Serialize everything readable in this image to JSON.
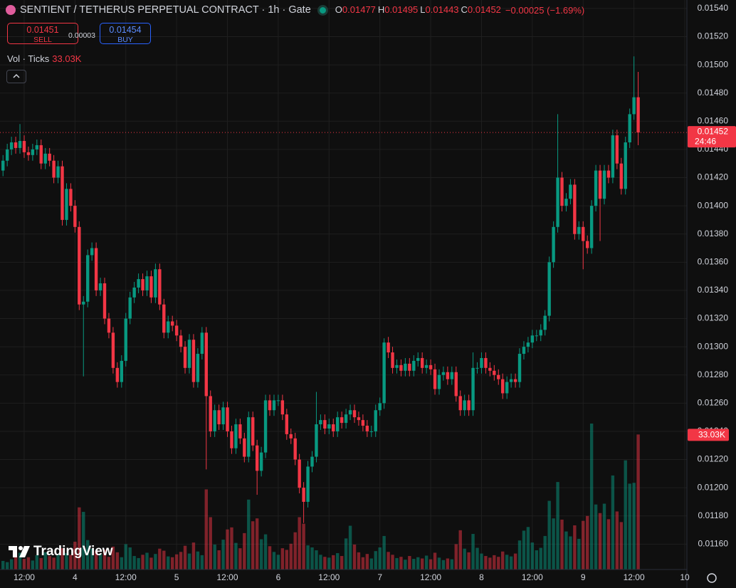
{
  "chart_data": {
    "type": "candlestick",
    "title": "SENTIENT / TETHERUS PERPETUAL CONTRACT · 1h · Gate",
    "legend": [
      {
        "key": "O",
        "value": "0.01477"
      },
      {
        "key": "H",
        "value": "0.01495"
      },
      {
        "key": "L",
        "value": "0.01443"
      },
      {
        "key": "C",
        "value": "0.01452"
      }
    ],
    "change": "−0.00025 (−1.69%)",
    "sell": {
      "price": "0.01451",
      "label": "SELL"
    },
    "spread": "0.00003",
    "buy": {
      "price": "0.01454",
      "label": "BUY"
    },
    "volume_legend": {
      "label": "Vol · Ticks",
      "value": "33.03K"
    },
    "price_label": "0.01452",
    "countdown": "24:46",
    "watermark": "TradingView",
    "up_color": "#089981",
    "down_color": "#f23645",
    "grid": true,
    "xlim": [
      6.29,
      168.5
    ],
    "xticks": [
      {
        "value": 12,
        "label": "12:00"
      },
      {
        "value": 24,
        "label": "4"
      },
      {
        "value": 36,
        "label": "12:00"
      },
      {
        "value": 48,
        "label": "5"
      },
      {
        "value": 60,
        "label": "12:00"
      },
      {
        "value": 72,
        "label": "6"
      },
      {
        "value": 84,
        "label": "12:00"
      },
      {
        "value": 96,
        "label": "7"
      },
      {
        "value": 108,
        "label": "12:00"
      },
      {
        "value": 120,
        "label": "8"
      },
      {
        "value": 132,
        "label": "12:00"
      },
      {
        "value": 144,
        "label": "9"
      },
      {
        "value": 156,
        "label": "12:00"
      },
      {
        "value": 168,
        "label": "10"
      }
    ],
    "ylim": [
      0.01142,
      0.01546
    ],
    "yticks": [
      {
        "value": 0.0154,
        "label": "0.01540"
      },
      {
        "value": 0.0152,
        "label": "0.01520"
      },
      {
        "value": 0.015,
        "label": "0.01500"
      },
      {
        "value": 0.0148,
        "label": "0.01480"
      },
      {
        "value": 0.0146,
        "label": "0.01460"
      },
      {
        "value": 0.0144,
        "label": "0.01440"
      },
      {
        "value": 0.0142,
        "label": "0.01420"
      },
      {
        "value": 0.014,
        "label": "0.01400"
      },
      {
        "value": 0.0138,
        "label": "0.01380"
      },
      {
        "value": 0.0136,
        "label": "0.01360"
      },
      {
        "value": 0.0134,
        "label": "0.01340"
      },
      {
        "value": 0.0132,
        "label": "0.01320"
      },
      {
        "value": 0.013,
        "label": "0.01300"
      },
      {
        "value": 0.0128,
        "label": "0.01280"
      },
      {
        "value": 0.0126,
        "label": "0.01260"
      },
      {
        "value": 0.0124,
        "label": "0.01240"
      },
      {
        "value": 0.0122,
        "label": "0.01220"
      },
      {
        "value": 0.012,
        "label": "0.01200"
      },
      {
        "value": 0.0118,
        "label": "0.01180"
      },
      {
        "value": 0.0116,
        "label": "0.01160"
      }
    ],
    "x": [
      7,
      8,
      9,
      10,
      11,
      12,
      13,
      14,
      15,
      16,
      17,
      18,
      19,
      20,
      21,
      22,
      23,
      24,
      25,
      26,
      27,
      28,
      29,
      30,
      31,
      32,
      33,
      34,
      35,
      36,
      37,
      38,
      39,
      40,
      41,
      42,
      43,
      44,
      45,
      46,
      47,
      48,
      49,
      50,
      51,
      52,
      53,
      54,
      55,
      56,
      57,
      58,
      59,
      60,
      61,
      62,
      63,
      64,
      65,
      66,
      67,
      68,
      69,
      70,
      71,
      72,
      73,
      74,
      75,
      76,
      77,
      78,
      79,
      80,
      81,
      82,
      83,
      84,
      85,
      86,
      87,
      88,
      89,
      90,
      91,
      92,
      93,
      94,
      95,
      96,
      97,
      98,
      99,
      100,
      101,
      102,
      103,
      104,
      105,
      106,
      107,
      108,
      109,
      110,
      111,
      112,
      113,
      114,
      115,
      116,
      117,
      118,
      119,
      120,
      121,
      122,
      123,
      124,
      125,
      126,
      127,
      128,
      129,
      130,
      131,
      132,
      133,
      134,
      135,
      136,
      137,
      138,
      139,
      140,
      141,
      142,
      143,
      144,
      145,
      146,
      147,
      148,
      149,
      150,
      151,
      152,
      153,
      154,
      155,
      156,
      157
    ],
    "open": [
      0.01425,
      0.01432,
      0.0144,
      0.01445,
      0.01441,
      0.01446,
      0.01438,
      0.01436,
      0.0144,
      0.01443,
      0.0143,
      0.01437,
      0.01432,
      0.0142,
      0.01428,
      0.0139,
      0.01412,
      0.014,
      0.01385,
      0.0133,
      0.01332,
      0.01365,
      0.0137,
      0.0134,
      0.01345,
      0.0132,
      0.0131,
      0.01285,
      0.01275,
      0.0129,
      0.0132,
      0.01335,
      0.01342,
      0.01348,
      0.0134,
      0.0135,
      0.01335,
      0.01355,
      0.0133,
      0.0131,
      0.01318,
      0.01315,
      0.01308,
      0.013,
      0.01285,
      0.01305,
      0.01275,
      0.01295,
      0.0131,
      0.01265,
      0.0124,
      0.01255,
      0.01245,
      0.01257,
      0.0124,
      0.01228,
      0.01245,
      0.01235,
      0.01222,
      0.0125,
      0.0123,
      0.01212,
      0.01225,
      0.01262,
      0.01255,
      0.01262,
      0.01262,
      0.01252,
      0.01238,
      0.01235,
      0.0122,
      0.012,
      0.0119,
      0.01215,
      0.01222,
      0.01245,
      0.01248,
      0.01242,
      0.01245,
      0.0124,
      0.0125,
      0.01246,
      0.01252,
      0.01255,
      0.0125,
      0.01248,
      0.01244,
      0.0124,
      0.0124,
      0.01255,
      0.0126,
      0.01303,
      0.01296,
      0.01285,
      0.01287,
      0.01283,
      0.01288,
      0.01283,
      0.0129,
      0.01292,
      0.01285,
      0.01287,
      0.01284,
      0.0127,
      0.0128,
      0.01282,
      0.01277,
      0.01282,
      0.01265,
      0.01255,
      0.01262,
      0.01255,
      0.01285,
      0.01285,
      0.01292,
      0.01285,
      0.01283,
      0.0128,
      0.01277,
      0.01267,
      0.01275,
      0.01277,
      0.01275,
      0.01295,
      0.013,
      0.01303,
      0.01308,
      0.01308,
      0.01312,
      0.01322,
      0.0136,
      0.01385,
      0.0142,
      0.014,
      0.01405,
      0.01415,
      0.0138,
      0.01385,
      0.01375,
      0.0137,
      0.014,
      0.01425,
      0.01405,
      0.01425,
      0.0142,
      0.0145,
      0.0143,
      0.01412,
      0.01445,
      0.01465,
      0.01477
    ],
    "high": [
      0.01436,
      0.01444,
      0.01449,
      0.01449,
      0.01458,
      0.0145,
      0.01442,
      0.01444,
      0.01447,
      0.01447,
      0.01441,
      0.01441,
      0.01436,
      0.01432,
      0.01432,
      0.01416,
      0.01416,
      0.01404,
      0.01389,
      0.01336,
      0.01369,
      0.01374,
      0.01374,
      0.01349,
      0.01349,
      0.01324,
      0.01314,
      0.01289,
      0.01294,
      0.01324,
      0.01339,
      0.01346,
      0.01352,
      0.01352,
      0.01354,
      0.01354,
      0.01359,
      0.01359,
      0.01334,
      0.01322,
      0.01322,
      0.01319,
      0.01312,
      0.01304,
      0.01309,
      0.01309,
      0.01299,
      0.01314,
      0.01314,
      0.01269,
      0.01259,
      0.01259,
      0.01261,
      0.01261,
      0.01244,
      0.01249,
      0.01249,
      0.01239,
      0.01254,
      0.01254,
      0.01234,
      0.01229,
      0.01266,
      0.01266,
      0.01266,
      0.01266,
      0.01266,
      0.01256,
      0.01242,
      0.01239,
      0.01224,
      0.01204,
      0.01219,
      0.01226,
      0.01268,
      0.01252,
      0.01252,
      0.01249,
      0.01249,
      0.01254,
      0.01254,
      0.01256,
      0.01259,
      0.01259,
      0.01254,
      0.01252,
      0.01248,
      0.01244,
      0.01259,
      0.01264,
      0.01306,
      0.01307,
      0.013,
      0.01291,
      0.01291,
      0.01292,
      0.01292,
      0.01294,
      0.01296,
      0.01296,
      0.01291,
      0.01291,
      0.01288,
      0.01284,
      0.01286,
      0.01286,
      0.01286,
      0.01286,
      0.01269,
      0.01266,
      0.01266,
      0.01296,
      0.01289,
      0.01296,
      0.01296,
      0.01289,
      0.01287,
      0.01284,
      0.01281,
      0.01279,
      0.01281,
      0.01281,
      0.01299,
      0.01304,
      0.01307,
      0.01312,
      0.01312,
      0.01316,
      0.01326,
      0.01364,
      0.01389,
      0.01465,
      0.01424,
      0.01409,
      0.01419,
      0.01419,
      0.01389,
      0.01389,
      0.01379,
      0.01404,
      0.01429,
      0.01429,
      0.01429,
      0.01429,
      0.01454,
      0.01454,
      0.01434,
      0.01449,
      0.01469,
      0.01506,
      0.01495
    ],
    "low": [
      0.01421,
      0.01428,
      0.01436,
      0.01437,
      0.01437,
      0.01434,
      0.01432,
      0.01432,
      0.01436,
      0.01426,
      0.01426,
      0.01428,
      0.01416,
      0.01416,
      0.01386,
      0.01386,
      0.01396,
      0.01381,
      0.01326,
      0.01279,
      0.01328,
      0.01361,
      0.01336,
      0.01336,
      0.01316,
      0.01306,
      0.01281,
      0.01271,
      0.01271,
      0.01286,
      0.01316,
      0.01331,
      0.01338,
      0.01336,
      0.01336,
      0.01331,
      0.01331,
      0.01326,
      0.01306,
      0.01306,
      0.01311,
      0.01304,
      0.01296,
      0.01281,
      0.01281,
      0.01271,
      0.01271,
      0.01291,
      0.01213,
      0.01236,
      0.01236,
      0.01241,
      0.01241,
      0.01236,
      0.01224,
      0.01224,
      0.01231,
      0.01218,
      0.01218,
      0.01226,
      0.01195,
      0.01208,
      0.01221,
      0.01251,
      0.01251,
      0.01258,
      0.01248,
      0.01234,
      0.01231,
      0.01216,
      0.01196,
      0.01175,
      0.01186,
      0.01211,
      0.01218,
      0.01241,
      0.01238,
      0.01238,
      0.01236,
      0.01236,
      0.01242,
      0.01242,
      0.01248,
      0.01246,
      0.01244,
      0.0124,
      0.01236,
      0.01236,
      0.01236,
      0.01251,
      0.01256,
      0.01292,
      0.01281,
      0.01281,
      0.01279,
      0.01279,
      0.01279,
      0.01279,
      0.01286,
      0.01281,
      0.01281,
      0.0128,
      0.01266,
      0.01266,
      0.01276,
      0.01273,
      0.01273,
      0.01261,
      0.01251,
      0.01251,
      0.01251,
      0.01251,
      0.01281,
      0.01281,
      0.01281,
      0.01279,
      0.01276,
      0.01273,
      0.01263,
      0.01263,
      0.01271,
      0.01271,
      0.01271,
      0.01291,
      0.01296,
      0.01299,
      0.01304,
      0.01304,
      0.01308,
      0.01318,
      0.01356,
      0.01381,
      0.01396,
      0.01396,
      0.01401,
      0.01376,
      0.01376,
      0.01355,
      0.01366,
      0.01366,
      0.01396,
      0.01375,
      0.01401,
      0.01416,
      0.01416,
      0.01426,
      0.01408,
      0.01408,
      0.01441,
      0.01461,
      0.01443
    ],
    "close": [
      0.01432,
      0.0144,
      0.01445,
      0.01441,
      0.01446,
      0.01438,
      0.01436,
      0.0144,
      0.01443,
      0.0143,
      0.01437,
      0.01432,
      0.0142,
      0.01428,
      0.0139,
      0.01412,
      0.014,
      0.01385,
      0.0133,
      0.01332,
      0.01365,
      0.0137,
      0.0134,
      0.01345,
      0.0132,
      0.0131,
      0.01285,
      0.01275,
      0.0129,
      0.0132,
      0.01335,
      0.01342,
      0.01348,
      0.0134,
      0.0135,
      0.01335,
      0.01355,
      0.0133,
      0.0131,
      0.01318,
      0.01315,
      0.01308,
      0.013,
      0.01285,
      0.01305,
      0.01275,
      0.01295,
      0.0131,
      0.01265,
      0.0124,
      0.01255,
      0.01245,
      0.01257,
      0.0124,
      0.01228,
      0.01245,
      0.01235,
      0.01222,
      0.0125,
      0.0123,
      0.01212,
      0.01225,
      0.01262,
      0.01255,
      0.01262,
      0.01262,
      0.01252,
      0.01238,
      0.01235,
      0.0122,
      0.012,
      0.0119,
      0.01215,
      0.01222,
      0.01245,
      0.01248,
      0.01242,
      0.01245,
      0.0124,
      0.0125,
      0.01246,
      0.01252,
      0.01255,
      0.0125,
      0.01248,
      0.01244,
      0.0124,
      0.0124,
      0.01255,
      0.0126,
      0.01303,
      0.01296,
      0.01285,
      0.01287,
      0.01283,
      0.01288,
      0.01283,
      0.0129,
      0.01292,
      0.01285,
      0.01287,
      0.01284,
      0.0127,
      0.0128,
      0.01282,
      0.01277,
      0.01282,
      0.01265,
      0.01255,
      0.01262,
      0.01255,
      0.01285,
      0.01285,
      0.01292,
      0.01285,
      0.01283,
      0.0128,
      0.01277,
      0.01267,
      0.01275,
      0.01277,
      0.01275,
      0.01295,
      0.013,
      0.01303,
      0.01308,
      0.01308,
      0.01312,
      0.01322,
      0.0136,
      0.01385,
      0.0142,
      0.014,
      0.01405,
      0.01415,
      0.0138,
      0.01385,
      0.01375,
      0.0137,
      0.014,
      0.01425,
      0.01405,
      0.01425,
      0.0142,
      0.0145,
      0.0143,
      0.01412,
      0.01445,
      0.01465,
      0.01477,
      0.01452
    ],
    "volume": [
      2100,
      1800,
      2500,
      3200,
      4100,
      2600,
      3000,
      2200,
      3500,
      2800,
      4200,
      3300,
      2900,
      3800,
      5200,
      4000,
      3600,
      6800,
      15200,
      14100,
      7200,
      5100,
      4600,
      3900,
      4800,
      3100,
      5600,
      4200,
      3000,
      6200,
      5400,
      3300,
      2800,
      3600,
      4100,
      2900,
      3800,
      5100,
      4600,
      3200,
      3000,
      3700,
      4300,
      5800,
      3900,
      6600,
      4400,
      3500,
      19600,
      12800,
      6100,
      4700,
      7300,
      9800,
      10300,
      6500,
      5200,
      8900,
      17100,
      11800,
      12500,
      7400,
      8600,
      5700,
      4300,
      3600,
      5200,
      4800,
      6300,
      9100,
      12800,
      11200,
      5900,
      5400,
      4700,
      3600,
      3100,
      2900,
      3500,
      4000,
      3300,
      7600,
      10700,
      6100,
      4200,
      3000,
      3800,
      2700,
      4500,
      5400,
      8200,
      4300,
      3600,
      2800,
      3100,
      2400,
      3300,
      2600,
      3000,
      2700,
      3400,
      2500,
      4100,
      2900,
      2300,
      2700,
      2500,
      6200,
      9600,
      5100,
      4200,
      8700,
      5300,
      3900,
      3300,
      2900,
      3500,
      3100,
      4400,
      3600,
      3200,
      3900,
      7100,
      9500,
      10400,
      6600,
      4700,
      5300,
      8200,
      16800,
      12500,
      21400,
      12200,
      9300,
      8100,
      10800,
      7500,
      11900,
      13100,
      35700,
      15900,
      13800,
      16100,
      12300,
      23000,
      14200,
      11600,
      26700,
      21000,
      21200,
      33030
    ]
  }
}
